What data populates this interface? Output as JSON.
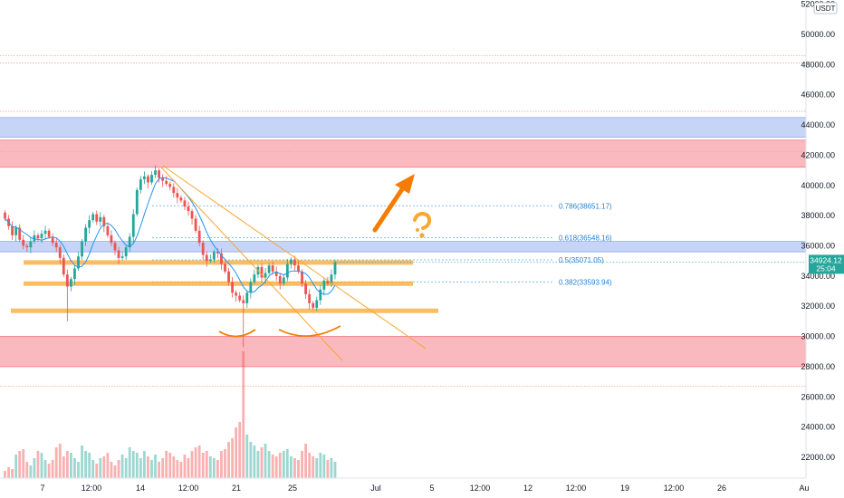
{
  "chart_data": {
    "type": "candlestick",
    "title": "",
    "price_axis": {
      "unit": "USDT",
      "ticks": [
        "52000.00",
        "50000.00",
        "48000.00",
        "46000.00",
        "44000.00",
        "42000.00",
        "40000.00",
        "38000.00",
        "36000.00",
        "34000.00",
        "32000.00",
        "30000.00",
        "28000.00",
        "26000.00",
        "24000.00",
        "22000.00"
      ]
    },
    "current_price": {
      "value": "34924.12",
      "countdown": "25:04",
      "color": "#26a69a"
    },
    "time_axis": {
      "labels": [
        "7",
        "12:00",
        "14",
        "12:00",
        "21",
        "25",
        "Jul",
        "5",
        "12:00",
        "12",
        "12:00",
        "19",
        "12:00",
        "26",
        "Au"
      ]
    },
    "fib_levels": [
      {
        "ratio": "0.786",
        "label": "0.786(38651.17)"
      },
      {
        "ratio": "0.618",
        "label": "0.618(36548.16)"
      },
      {
        "ratio": "0.5",
        "label": "0.5(35071.05)"
      },
      {
        "ratio": "0.382",
        "label": "0.382(33593.94)"
      }
    ],
    "zones": [
      {
        "type": "resistance",
        "color": "#5b86e5",
        "from": 43200,
        "to": 44500
      },
      {
        "type": "resistance",
        "color": "#f23645",
        "from": 41200,
        "to": 43000
      },
      {
        "type": "resistance",
        "color": "#5b86e5",
        "from": 35600,
        "to": 36300
      },
      {
        "type": "support",
        "color": "#f23645",
        "from": 28000,
        "to": 30000
      }
    ],
    "horizontal_lines": [
      48600,
      48100,
      44900,
      42250,
      26700
    ],
    "support_lines": [
      34900,
      33500,
      31700
    ],
    "annotations": [
      {
        "type": "arrow",
        "direction": "up",
        "color": "#f57c00"
      },
      {
        "type": "question-mark",
        "color": "#f7a732"
      },
      {
        "type": "double-bottom-arcs",
        "color": "#f57c00"
      },
      {
        "type": "trendline",
        "color": "#f7a732",
        "from": 41300,
        "to": 29200
      }
    ],
    "colors": {
      "up": "#26a69a",
      "down": "#ef5350",
      "ma": "#2196f3"
    }
  }
}
